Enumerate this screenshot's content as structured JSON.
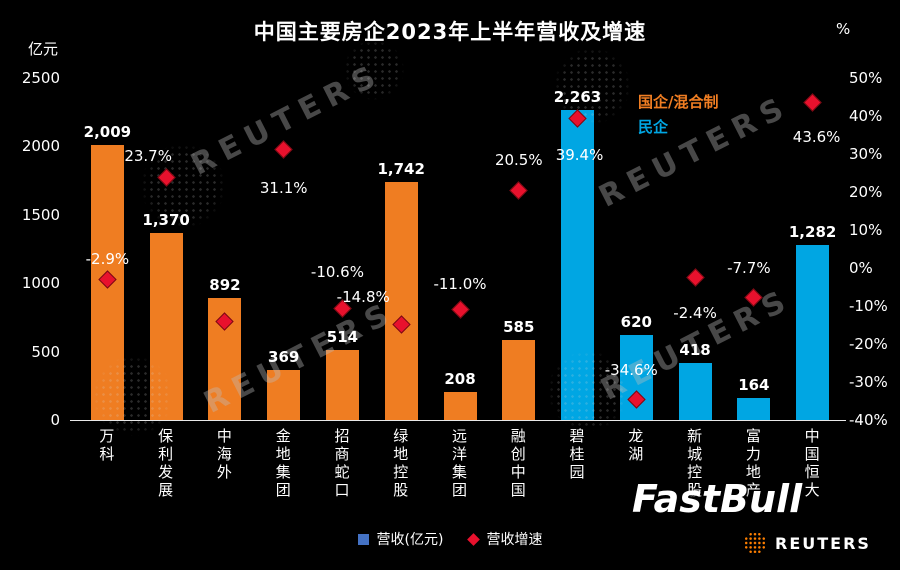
{
  "branding": {
    "fastbull": "FastBull",
    "reuters": "REUTERS",
    "watermark_text": "REUTERS"
  },
  "chart_data": {
    "type": "bar",
    "title": "中国主要房企2023年上半年营收及增速",
    "grid": false,
    "legend_position": "top-right",
    "left_axis": {
      "label": "亿元",
      "min": 0,
      "max": 2500,
      "ticks": [
        0,
        500,
        1000,
        1500,
        2000,
        2500
      ]
    },
    "right_axis": {
      "label": "%",
      "min": -40,
      "max": 50,
      "ticks": [
        -40,
        -30,
        -20,
        -10,
        0,
        10,
        20,
        30,
        40,
        50
      ],
      "tick_suffix": "%"
    },
    "groups": [
      {
        "id": "soe",
        "label": "国企/混合制",
        "color": "#ef7d22"
      },
      {
        "id": "private",
        "label": "民企",
        "color": "#00a6e3"
      }
    ],
    "series": [
      {
        "name": "营收(亿元)",
        "type": "bar",
        "legend_color": "#4472c4"
      },
      {
        "name": "营收增速",
        "type": "scatter",
        "marker": "diamond",
        "color": "#e8112d"
      }
    ],
    "companies": [
      {
        "name": "万科",
        "revenue": 2009,
        "revenue_label": "2,009",
        "growth": -2.9,
        "growth_label": "-2.9%",
        "group": "soe"
      },
      {
        "name": "保利发展",
        "revenue": 1370,
        "revenue_label": "1,370",
        "growth": 23.7,
        "growth_label": "23.7%",
        "group": "soe"
      },
      {
        "name": "中海外",
        "revenue": 892,
        "revenue_label": "892",
        "growth": -14.2,
        "growth_label": "",
        "group": "soe"
      },
      {
        "name": "金地集团",
        "revenue": 369,
        "revenue_label": "369",
        "growth": 31.1,
        "growth_label": "31.1%",
        "group": "soe"
      },
      {
        "name": "招商蛇口",
        "revenue": 514,
        "revenue_label": "514",
        "growth": -10.6,
        "growth_label": "-10.6%",
        "group": "soe"
      },
      {
        "name": "绿地控股",
        "revenue": 1742,
        "revenue_label": "1,742",
        "growth": -14.8,
        "growth_label": "-14.8%",
        "group": "soe"
      },
      {
        "name": "远洋集团",
        "revenue": 208,
        "revenue_label": "208",
        "growth": -11.0,
        "growth_label": "-11.0%",
        "group": "soe"
      },
      {
        "name": "融创中国",
        "revenue": 585,
        "revenue_label": "585",
        "growth": 20.5,
        "growth_label": "20.5%",
        "group": "soe"
      },
      {
        "name": "碧桂园",
        "revenue": 2263,
        "revenue_label": "2,263",
        "growth": 39.4,
        "growth_label": "39.4%",
        "group": "private"
      },
      {
        "name": "龙湖",
        "revenue": 620,
        "revenue_label": "620",
        "growth": -34.6,
        "growth_label": "-34.6%",
        "group": "private"
      },
      {
        "name": "新城控股",
        "revenue": 418,
        "revenue_label": "418",
        "growth": -2.4,
        "growth_label": "-2.4%",
        "group": "private"
      },
      {
        "name": "富力地产",
        "revenue": 164,
        "revenue_label": "164",
        "growth": -7.7,
        "growth_label": "-7.7%",
        "group": "private"
      },
      {
        "name": "中国恒大",
        "revenue": 1282,
        "revenue_label": "1,282",
        "growth": 43.6,
        "growth_label": "43.6%",
        "group": "private"
      }
    ]
  }
}
